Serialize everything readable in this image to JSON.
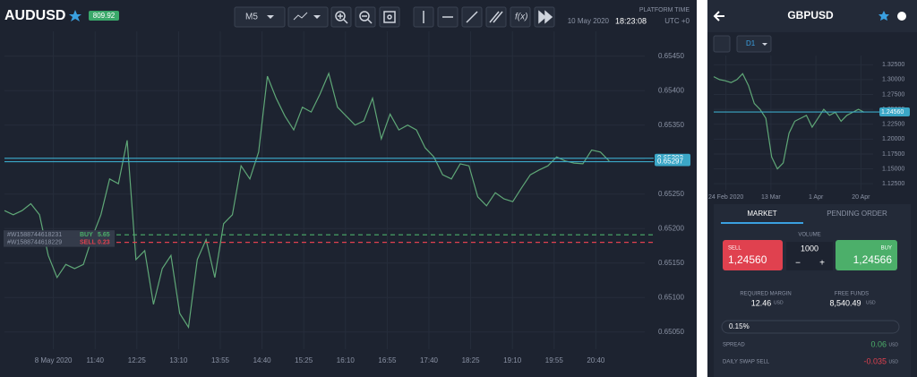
{
  "main_chart": {
    "symbol": "AUDUSD",
    "badge": "809.92",
    "timeframe": "M5",
    "platform_time_label": "PLATFORM TIME",
    "platform_time": "10 May 2020",
    "platform_clock": "18:23:08",
    "platform_zone": "UTC +0",
    "prices": [
      0.65226,
      0.6522,
      0.65226,
      0.65236,
      0.6522,
      0.65161,
      0.65129,
      0.65148,
      0.65142,
      0.65148,
      0.65187,
      0.6522,
      0.65272,
      0.65265,
      0.65328,
      0.65155,
      0.65168,
      0.6509,
      0.65142,
      0.65161,
      0.65077,
      0.65057,
      0.65155,
      0.65184,
      0.65129,
      0.65207,
      0.6522,
      0.65291,
      0.65272,
      0.65311,
      0.65421,
      0.65389,
      0.65363,
      0.65343,
      0.65376,
      0.65369,
      0.65395,
      0.65425,
      0.65376,
      0.65363,
      0.6535,
      0.65356,
      0.65389,
      0.6533,
      0.65366,
      0.65343,
      0.6535,
      0.65343,
      0.65317,
      0.65304,
      0.65278,
      0.65272,
      0.65294,
      0.65291,
      0.65246,
      0.65233,
      0.65252,
      0.65243,
      0.65239,
      0.65259,
      0.65278,
      0.65285,
      0.65291,
      0.65304,
      0.65298,
      0.65295,
      0.65294,
      0.65314,
      0.65311,
      0.65298
    ],
    "color": "#5fa777",
    "ylim": [
      0.65025,
      0.65486
    ],
    "yticks": [
      {
        "value": 0.6545,
        "label": "0.65450"
      },
      {
        "value": 0.654,
        "label": "0.65400"
      },
      {
        "value": 0.6535,
        "label": "0.65350"
      },
      {
        "value": 0.653,
        "label": "0.65300"
      },
      {
        "value": 0.6525,
        "label": "0.65250"
      },
      {
        "value": 0.652,
        "label": "0.65200"
      },
      {
        "value": 0.6515,
        "label": "0.65150"
      },
      {
        "value": 0.651,
        "label": "0.65100"
      },
      {
        "value": 0.6505,
        "label": "0.65050"
      }
    ],
    "xlabels": [
      "8 May 2020",
      "11:40",
      "12:25",
      "13:10",
      "13:55",
      "14:40",
      "15:25",
      "16:10",
      "16:55",
      "17:40",
      "18:25",
      "19:10",
      "19:55",
      "20:40"
    ],
    "levels": [
      {
        "value": 0.65302,
        "label": "0.65302"
      },
      {
        "value": 0.65297,
        "label": "0.65297"
      }
    ],
    "orders": [
      {
        "id": "#W1588744618231",
        "side": "BUY",
        "amount": 5.65,
        "value": 0.65191,
        "color": "#4caf6a"
      },
      {
        "id": "#W1588744618229",
        "side": "SELL",
        "amount": 0.23,
        "value": 0.6518,
        "color": "#e0414f"
      }
    ]
  },
  "side_chart": {
    "symbol": "GBPUSD",
    "timeframe": "D1",
    "prices": [
      1.305,
      1.3,
      1.298,
      1.295,
      1.3,
      1.31,
      1.29,
      1.26,
      1.25,
      1.235,
      1.17,
      1.15,
      1.16,
      1.21,
      1.23,
      1.235,
      1.24,
      1.22,
      1.235,
      1.25,
      1.24,
      1.245,
      1.23,
      1.24,
      1.245,
      1.25,
      1.245
    ],
    "color": "#5fa777",
    "ylim": [
      1.1147,
      1.3405
    ],
    "yticks": [
      {
        "value": 1.325,
        "label": "1.32500"
      },
      {
        "value": 1.3,
        "label": "1.30000"
      },
      {
        "value": 1.275,
        "label": "1.27500"
      },
      {
        "value": 1.25,
        "label": "1.25000"
      },
      {
        "value": 1.225,
        "label": "1.22500"
      },
      {
        "value": 1.2,
        "label": "1.20000"
      },
      {
        "value": 1.175,
        "label": "1.17500"
      },
      {
        "value": 1.15,
        "label": "1.15000"
      },
      {
        "value": 1.125,
        "label": "1.12500"
      }
    ],
    "xlabels": [
      "24 Feb 2020",
      "13 Mar",
      "1 Apr",
      "20 Apr"
    ],
    "level": {
      "value": 1.2456,
      "label": "1.24560"
    }
  },
  "order_panel": {
    "tabs": [
      "MARKET",
      "PENDING ORDER"
    ],
    "sell_label": "SELL",
    "sell_price": "1,24560",
    "buy_label": "BUY",
    "buy_price": "1,24566",
    "volume_label": "VOLUME",
    "volume": "1000",
    "minus": "−",
    "plus": "+",
    "required_margin_label": "REQUIRED MARGIN",
    "required_margin": "12.46",
    "free_funds_label": "FREE FUNDS",
    "free_funds": "8,540.49",
    "unit": "USD",
    "percent": "0.15%",
    "spread_label": "SPREAD",
    "spread": "0.06",
    "swap_label": "DAILY SWAP SELL",
    "swap": "-0.035"
  }
}
